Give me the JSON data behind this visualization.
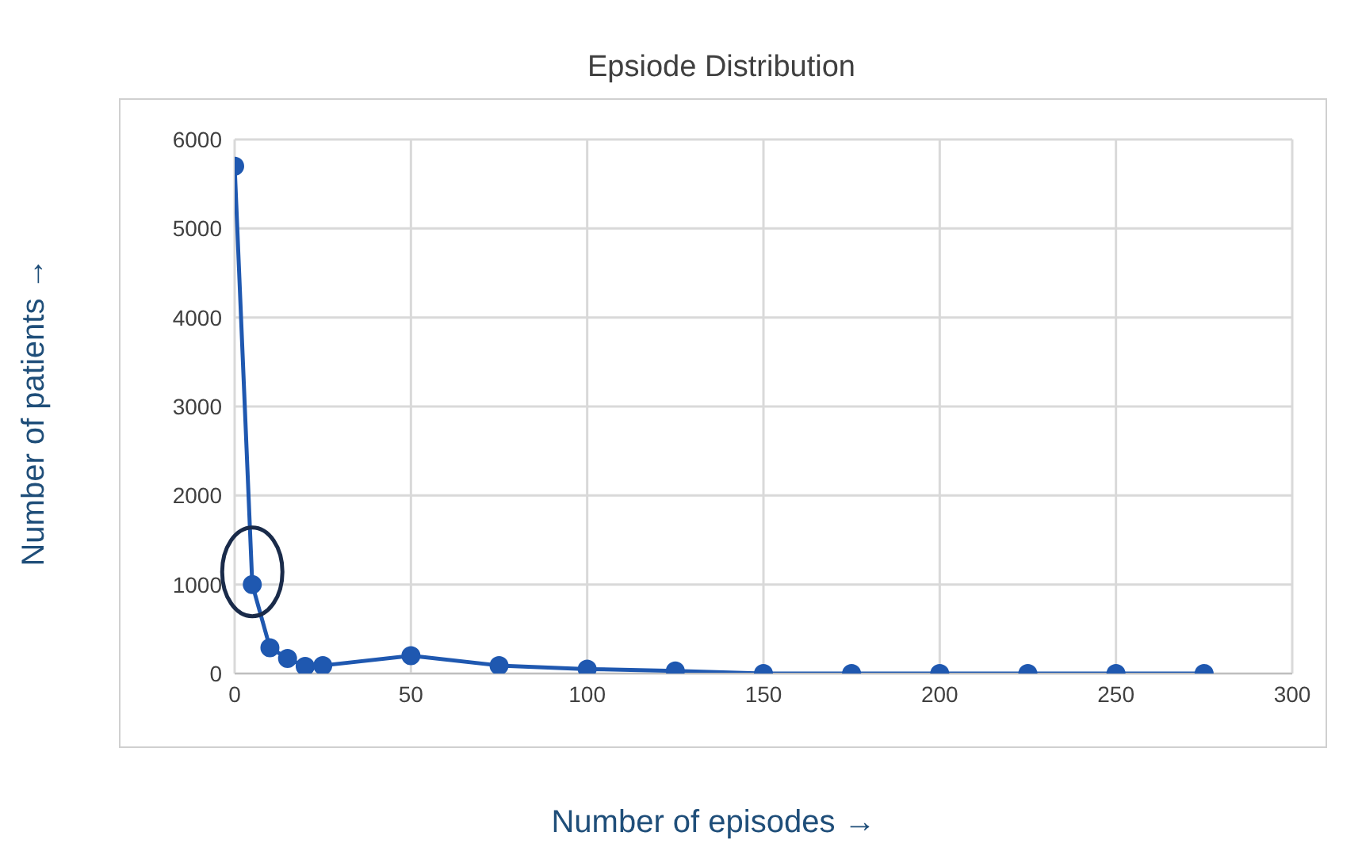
{
  "chart_data": {
    "type": "line",
    "title": "Epsiode Distribution",
    "xlabel": "Number of episodes →",
    "ylabel": "Number of patients →",
    "x": [
      0,
      5,
      10,
      15,
      20,
      25,
      50,
      75,
      100,
      125,
      150,
      175,
      200,
      225,
      250,
      275
    ],
    "series": [
      {
        "color": "#1f58b0",
        "values": [
          5700,
          1000,
          290,
          170,
          80,
          90,
          200,
          90,
          50,
          30,
          0,
          0,
          0,
          0,
          0,
          0
        ]
      }
    ],
    "xlim": [
      0,
      300
    ],
    "xticks": [
      0,
      50,
      100,
      150,
      200,
      250,
      300
    ],
    "ylim": [
      0,
      6000
    ],
    "yticks": [
      0,
      1000,
      2000,
      3000,
      4000,
      5000,
      6000
    ],
    "grid": true,
    "marker": "circle",
    "line_style": "solid"
  }
}
